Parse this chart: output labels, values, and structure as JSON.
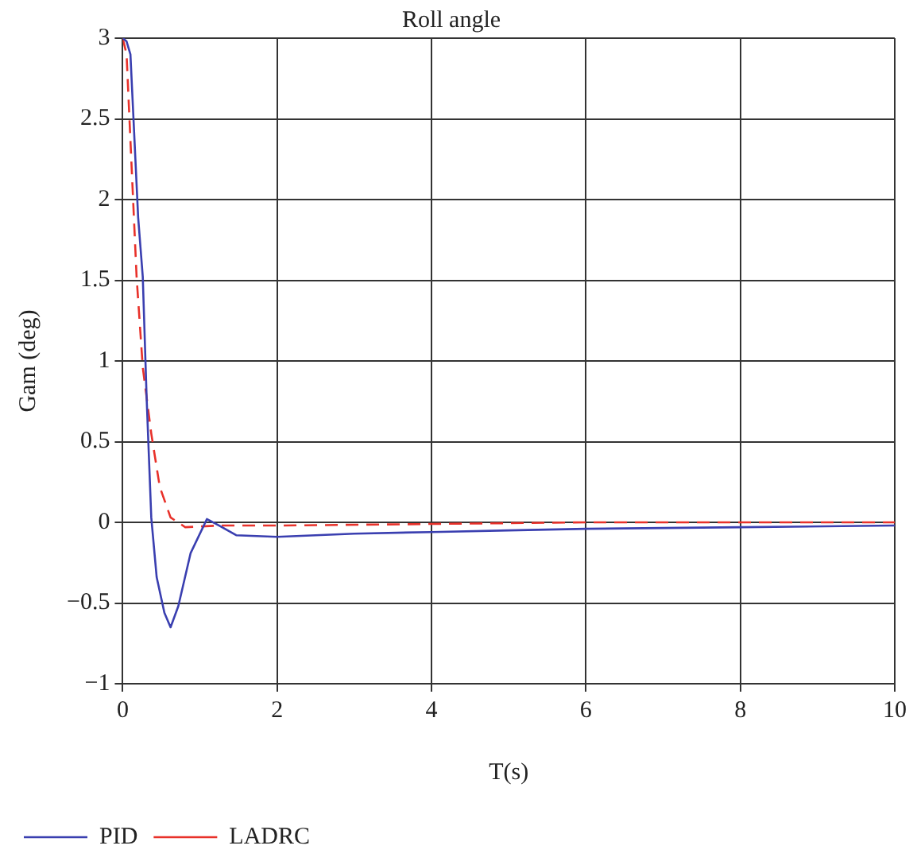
{
  "chart_data": {
    "type": "line",
    "title": "Roll angle",
    "xlabel": "T(s)",
    "ylabel": "Gam (deg)",
    "xlim": [
      0,
      10
    ],
    "xticks": [
      0,
      2,
      4,
      6,
      8,
      10
    ],
    "ylim": [
      -1,
      3
    ],
    "yticks": [
      {
        "value": -1,
        "label": "−1"
      },
      {
        "value": -0.5,
        "label": "−0.5"
      },
      0,
      0.5,
      1,
      1.5,
      2,
      2.5,
      3
    ],
    "grid": true,
    "legend": "bottom",
    "series": [
      {
        "name": "PID",
        "color": "#3a3fb0",
        "line_style": "solid",
        "x": [
          0,
          0.05,
          0.1,
          0.2,
          0.26,
          0.31,
          0.37,
          0.44,
          0.54,
          0.62,
          0.72,
          0.88,
          1.09,
          1.25,
          1.47,
          2,
          3,
          4,
          5,
          6,
          8,
          10
        ],
        "values": [
          3,
          2.98,
          2.9,
          1.89,
          1.52,
          0.77,
          0.03,
          -0.34,
          -0.56,
          -0.65,
          -0.52,
          -0.19,
          0.02,
          -0.02,
          -0.08,
          -0.09,
          -0.07,
          -0.06,
          -0.05,
          -0.04,
          -0.03,
          -0.02
        ]
      },
      {
        "name": "LADRC",
        "color": "#e8312a",
        "line_style": "dashed",
        "x": [
          0,
          0.05,
          0.11,
          0.18,
          0.26,
          0.37,
          0.48,
          0.62,
          0.81,
          1.25,
          2,
          4,
          6,
          8,
          10
        ],
        "values": [
          3,
          2.9,
          2.26,
          1.52,
          0.96,
          0.55,
          0.22,
          0.03,
          -0.03,
          -0.02,
          -0.02,
          -0.01,
          0,
          0,
          0
        ]
      }
    ]
  }
}
